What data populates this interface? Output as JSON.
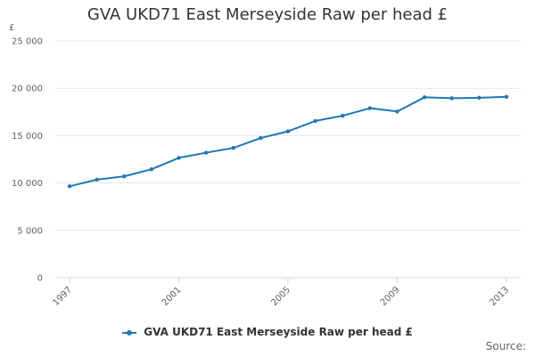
{
  "chart_data": {
    "type": "line",
    "title": "GVA UKD71 East Merseyside Raw per head £",
    "ylabel": "£",
    "xlabel": "",
    "ylim": [
      0,
      25000
    ],
    "y_ticks": [
      0,
      5000,
      10000,
      15000,
      20000,
      25000
    ],
    "y_tick_labels": [
      "0",
      "5 000",
      "10 000",
      "15 000",
      "20 000",
      "25 000"
    ],
    "x_ticks": [
      1997,
      2001,
      2005,
      2009,
      2013
    ],
    "x_tick_labels": [
      "1997",
      "2001",
      "2005",
      "2009",
      "2013"
    ],
    "grid": true,
    "legend_position": "bottom",
    "series": [
      {
        "name": "GVA UKD71 East Merseyside Raw per head £",
        "color": "#1f78b4",
        "x": [
          1997,
          1998,
          1999,
          2000,
          2001,
          2002,
          2003,
          2004,
          2005,
          2006,
          2007,
          2008,
          2009,
          2010,
          2011,
          2012,
          2013
        ],
        "values": [
          9650,
          10350,
          10700,
          11450,
          12650,
          13200,
          13700,
          14750,
          15450,
          16550,
          17100,
          17900,
          17550,
          19050,
          18950,
          19000,
          19100
        ]
      }
    ]
  },
  "source_label": "Source:"
}
